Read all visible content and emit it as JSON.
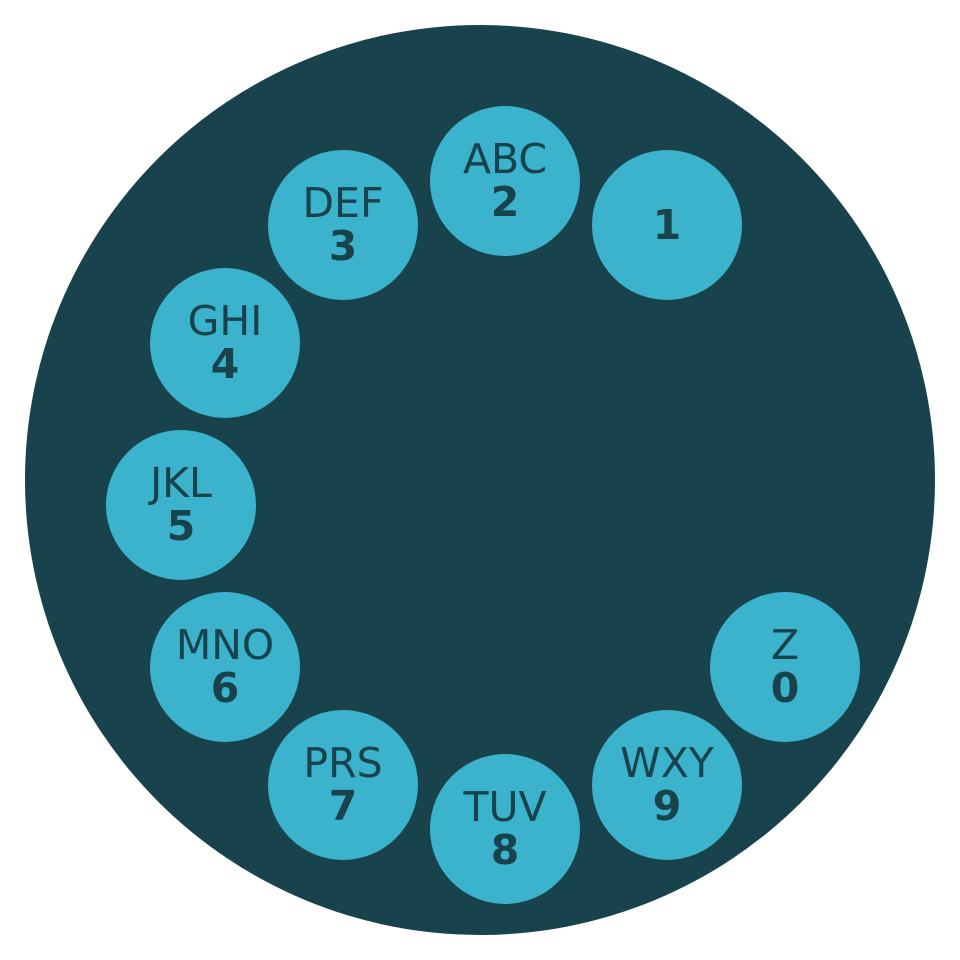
{
  "colors": {
    "background": "#ffffff",
    "dial": "#18424c",
    "hole": "#3bb3cc",
    "text": "#18424c"
  },
  "dial": {
    "keys": [
      {
        "digit": "1",
        "letters": ""
      },
      {
        "digit": "2",
        "letters": "ABC"
      },
      {
        "digit": "3",
        "letters": "DEF"
      },
      {
        "digit": "4",
        "letters": "GHI"
      },
      {
        "digit": "5",
        "letters": "JKL"
      },
      {
        "digit": "6",
        "letters": "MNO"
      },
      {
        "digit": "7",
        "letters": "PRS"
      },
      {
        "digit": "8",
        "letters": "TUV"
      },
      {
        "digit": "9",
        "letters": "WXY"
      },
      {
        "digit": "0",
        "letters": "Z"
      }
    ]
  }
}
